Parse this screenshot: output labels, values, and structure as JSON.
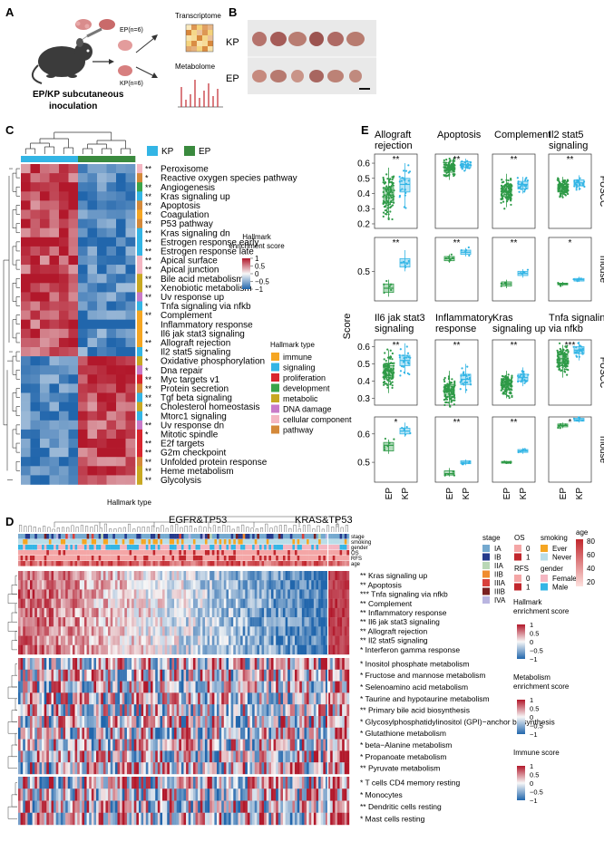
{
  "panelA": {
    "letter": "A",
    "ep_label": "EP(n=6)",
    "kp_label": "KP(n=6)",
    "transcriptome": "Transcriptome",
    "metabolome": "Metabolome",
    "caption_line1": "EP/KP subcutaneous",
    "caption_line2": "inoculation"
  },
  "panelB": {
    "letter": "B",
    "kp": "KP",
    "ep": "EP"
  },
  "panelC": {
    "letter": "C",
    "legend_kp": "KP",
    "legend_ep": "EP",
    "colorbar_title": [
      "Hallmark",
      "enrichment score"
    ],
    "colorbar_ticks": [
      "1",
      "0.5",
      "0",
      "−0.5",
      "−1"
    ],
    "type_title": "Hallmark type",
    "bottom_label": "Hallmark type",
    "types": [
      {
        "name": "immune",
        "color": "#f5a623"
      },
      {
        "name": "signaling",
        "color": "#33b5e5"
      },
      {
        "name": "proliferation",
        "color": "#d9262e"
      },
      {
        "name": "development",
        "color": "#3aa54a"
      },
      {
        "name": "metabolic",
        "color": "#c8a822"
      },
      {
        "name": "DNA damage",
        "color": "#c97ac8"
      },
      {
        "name": "cellular component",
        "color": "#f4b6c2"
      },
      {
        "name": "pathway",
        "color": "#d4893a"
      }
    ],
    "rows": [
      {
        "sig": "**",
        "name": "Peroxisome",
        "t": 6
      },
      {
        "sig": "*",
        "name": "Reactive oxygen species pathway",
        "t": 7
      },
      {
        "sig": "**",
        "name": "Angiogenesis",
        "t": 3
      },
      {
        "sig": "**",
        "name": "Kras signaling up",
        "t": 1
      },
      {
        "sig": "**",
        "name": "Apoptosis",
        "t": 7
      },
      {
        "sig": "**",
        "name": "Coagulation",
        "t": 0
      },
      {
        "sig": "**",
        "name": "P53 pathway",
        "t": 7
      },
      {
        "sig": "**",
        "name": "Kras signaling dn",
        "t": 1
      },
      {
        "sig": "**",
        "name": "Estrogen response early",
        "t": 1
      },
      {
        "sig": "**",
        "name": "Estrogen response late",
        "t": 1
      },
      {
        "sig": "**",
        "name": "Apical surface",
        "t": 6
      },
      {
        "sig": "**",
        "name": "Apical junction",
        "t": 6
      },
      {
        "sig": "**",
        "name": "Bile acid metabolism",
        "t": 4
      },
      {
        "sig": "**",
        "name": "Xenobiotic metabolism",
        "t": 4
      },
      {
        "sig": "**",
        "name": "Uv response up",
        "t": 5
      },
      {
        "sig": "*",
        "name": "Tnfa signaling via nfkb",
        "t": 1
      },
      {
        "sig": "**",
        "name": "Complement",
        "t": 0
      },
      {
        "sig": "*",
        "name": "Inflammatory response",
        "t": 0
      },
      {
        "sig": "*",
        "name": "Il6 jak stat3 signaling",
        "t": 0
      },
      {
        "sig": "**",
        "name": "Allograft rejection",
        "t": 0
      },
      {
        "sig": "*",
        "name": "Il2 stat5 signaling",
        "t": 1
      },
      {
        "sig": "*",
        "name": "Oxidative phosphorylation",
        "t": 4
      },
      {
        "sig": "*",
        "name": "Dna repair",
        "t": 5
      },
      {
        "sig": "**",
        "name": "Myc targets v1",
        "t": 2
      },
      {
        "sig": "**",
        "name": "Protein secretion",
        "t": 7
      },
      {
        "sig": "**",
        "name": "Tgf beta signaling",
        "t": 1
      },
      {
        "sig": "**",
        "name": "Cholesterol homeostasis",
        "t": 4
      },
      {
        "sig": "*",
        "name": "Mtorc1 signaling",
        "t": 1
      },
      {
        "sig": "**",
        "name": "Uv response dn",
        "t": 5
      },
      {
        "sig": "*",
        "name": "Mitotic spindle",
        "t": 2
      },
      {
        "sig": "**",
        "name": "E2f targets",
        "t": 2
      },
      {
        "sig": "**",
        "name": "G2m checkpoint",
        "t": 2
      },
      {
        "sig": "**",
        "name": "Unfolded protein response",
        "t": 7
      },
      {
        "sig": "**",
        "name": "Heme metabolism",
        "t": 4
      },
      {
        "sig": "**",
        "name": "Glycolysis",
        "t": 4
      }
    ]
  },
  "panelE": {
    "letter": "E",
    "ylabel": "Score",
    "row_labels": [
      "FUSCC",
      "mouse",
      "FUSCC",
      "mouse"
    ],
    "xticks": [
      "EP",
      "KP"
    ],
    "colors": {
      "EP": "#2e9a47",
      "KP": "#33b5e5"
    },
    "top_titles": [
      [
        "Allograft",
        "rejection"
      ],
      [
        "Apoptosis"
      ],
      [
        "Complement"
      ],
      [
        "Il2 stat5",
        "signaling"
      ]
    ],
    "bottom_titles": [
      [
        "Il6 jak stat3",
        "signaling"
      ],
      [
        "Inflammatory",
        "response"
      ],
      [
        "Kras",
        "signaling up"
      ],
      [
        "Tnfa signaling",
        "via nfkb"
      ]
    ],
    "row1_ticks": [
      "0.6",
      "0.5",
      "0.4",
      "0.3",
      "0.2"
    ],
    "row2_ticks": [
      "0.5"
    ],
    "row3_ticks": [
      "0.6",
      "0.5",
      "0.4",
      "0.3"
    ],
    "row4_ticks": [
      "0.6",
      "0.5"
    ],
    "sig": [
      [
        "**",
        "**",
        "**",
        "**"
      ],
      [
        "**",
        "**",
        "**",
        "*"
      ],
      [
        "**",
        "**",
        "**",
        "***"
      ],
      [
        "*",
        "**",
        "**",
        "*"
      ]
    ]
  },
  "panelD": {
    "letter": "D",
    "egfr": "EGFR&TP53",
    "kras": "KRAS&TP53",
    "track_labels": [
      "stage",
      "smoking",
      "gender",
      "OS",
      "RFS",
      "age"
    ],
    "legend": {
      "stage_title": "stage",
      "stages": [
        {
          "l": "IA",
          "c": "#74a9cf"
        },
        {
          "l": "IB",
          "c": "#253a8c"
        },
        {
          "l": "IIA",
          "c": "#b9d7b5"
        },
        {
          "l": "IIB",
          "c": "#f08c2e"
        },
        {
          "l": "IIIA",
          "c": "#d9403a"
        },
        {
          "l": "IIIB",
          "c": "#7a1f1f"
        },
        {
          "l": "IVA",
          "c": "#b9b5e0"
        }
      ],
      "os_title": "OS",
      "os": [
        {
          "l": "0",
          "c": "#f4a6a6"
        },
        {
          "l": "1",
          "c": "#c1272d"
        }
      ],
      "rfs_title": "RFS",
      "rfs": [
        {
          "l": "0",
          "c": "#f4a6a6"
        },
        {
          "l": "1",
          "c": "#c1272d"
        }
      ],
      "smoking_title": "smoking",
      "smoking": [
        {
          "l": "Ever",
          "c": "#f5a623"
        },
        {
          "l": "Never",
          "c": "#b9dde8"
        }
      ],
      "gender_title": "gender",
      "gender": [
        {
          "l": "Female",
          "c": "#f4b6c2"
        },
        {
          "l": "Male",
          "c": "#33b5e5"
        }
      ],
      "age_title": "age",
      "age_ticks": [
        "80",
        "60",
        "40",
        "20"
      ]
    },
    "hallmark_title": [
      "Hallmark",
      "enrichment score"
    ],
    "metabolism_title": [
      "Metabolism",
      "enrichment score"
    ],
    "immune_title": "Immune score",
    "scale_ticks": [
      "1",
      "0.5",
      "0",
      "−0.5",
      "−1"
    ],
    "hallmark_rows": [
      {
        "sig": "**",
        "name": "Kras signaling up"
      },
      {
        "sig": "**",
        "name": "Apoptosis"
      },
      {
        "sig": "***",
        "name": "Tnfa signaling via nfkb"
      },
      {
        "sig": "**",
        "name": "Complement"
      },
      {
        "sig": "**",
        "name": "Inflammatory response"
      },
      {
        "sig": "**",
        "name": "Il6 jak stat3 signaling"
      },
      {
        "sig": "**",
        "name": "Allograft rejection"
      },
      {
        "sig": "**",
        "name": "Il2 stat5 signaling"
      },
      {
        "sig": "*",
        "name": "Interferon gamma response"
      }
    ],
    "metabolism_rows": [
      {
        "sig": "*",
        "name": "Inositol phosphate metabolism"
      },
      {
        "sig": "*",
        "name": "Fructose and mannose metabolism"
      },
      {
        "sig": "*",
        "name": "Selenoamino acid metabolism"
      },
      {
        "sig": "*",
        "name": "Taurine and hypotaurine metabolism"
      },
      {
        "sig": "**",
        "name": "Primary bile acid biosynthesis"
      },
      {
        "sig": "*",
        "name": "Glycosylphosphatidylinositol (GPI)−anchor biosynthesis"
      },
      {
        "sig": "*",
        "name": "Glutathione metabolism"
      },
      {
        "sig": "*",
        "name": "beta−Alanine metabolism"
      },
      {
        "sig": "*",
        "name": "Propanoate metabolism"
      },
      {
        "sig": "**",
        "name": "Pyruvate metabolism"
      }
    ],
    "immune_rows": [
      {
        "sig": "*",
        "name": "T cells CD4 memory resting"
      },
      {
        "sig": "*",
        "name": "Monocytes"
      },
      {
        "sig": "**",
        "name": "Dendritic cells resting"
      },
      {
        "sig": "*",
        "name": "Mast cells resting"
      }
    ]
  }
}
